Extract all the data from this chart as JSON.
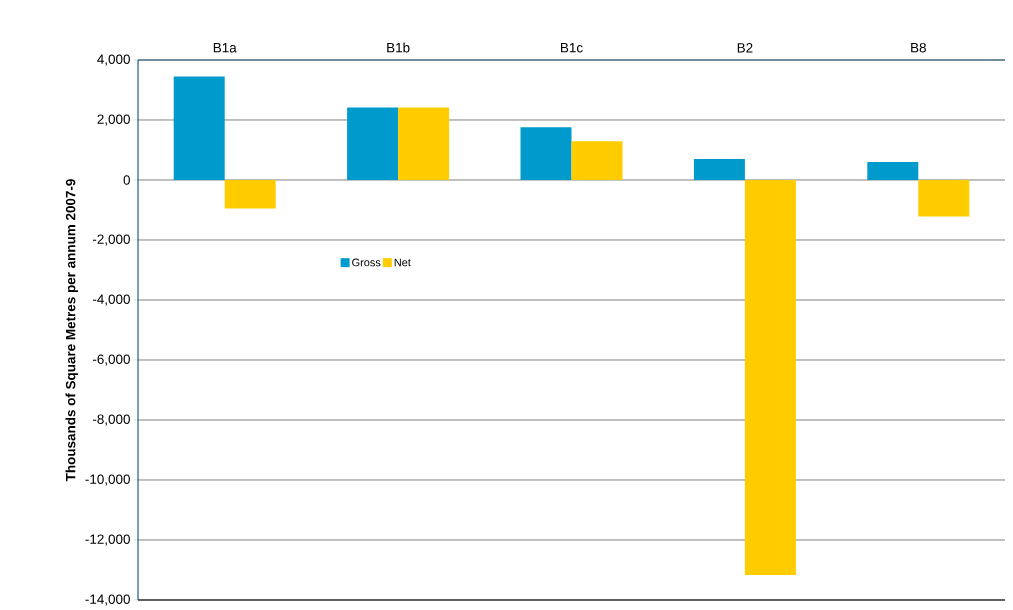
{
  "chart_data": {
    "type": "bar",
    "ylabel": "Thousands of Square Metres per annum 2007-9",
    "categories": [
      "B1a",
      "B1b",
      "B1c",
      "B2",
      "B8"
    ],
    "series": [
      {
        "name": "Gross",
        "color": "#009acd",
        "values": [
          3450,
          2420,
          1760,
          700,
          600
        ]
      },
      {
        "name": "Net",
        "color": "#ffcc00",
        "values": [
          -950,
          2420,
          1290,
          -13170,
          -1220
        ]
      }
    ],
    "ylim": [
      -14000,
      4000
    ],
    "yticks": [
      {
        "value": -14000,
        "label": "-14,000"
      },
      {
        "value": -12000,
        "label": "-12,000"
      },
      {
        "value": -10000,
        "label": "-10,000"
      },
      {
        "value": -8000,
        "label": "-8,000"
      },
      {
        "value": -6000,
        "label": "-6,000"
      },
      {
        "value": -4000,
        "label": "-4,000"
      },
      {
        "value": -2000,
        "label": "-2,000"
      },
      0,
      {
        "value": 2000,
        "label": "2,000"
      },
      {
        "value": 4000,
        "label": "4,000"
      }
    ],
    "grid": "y",
    "legend": "top left"
  }
}
